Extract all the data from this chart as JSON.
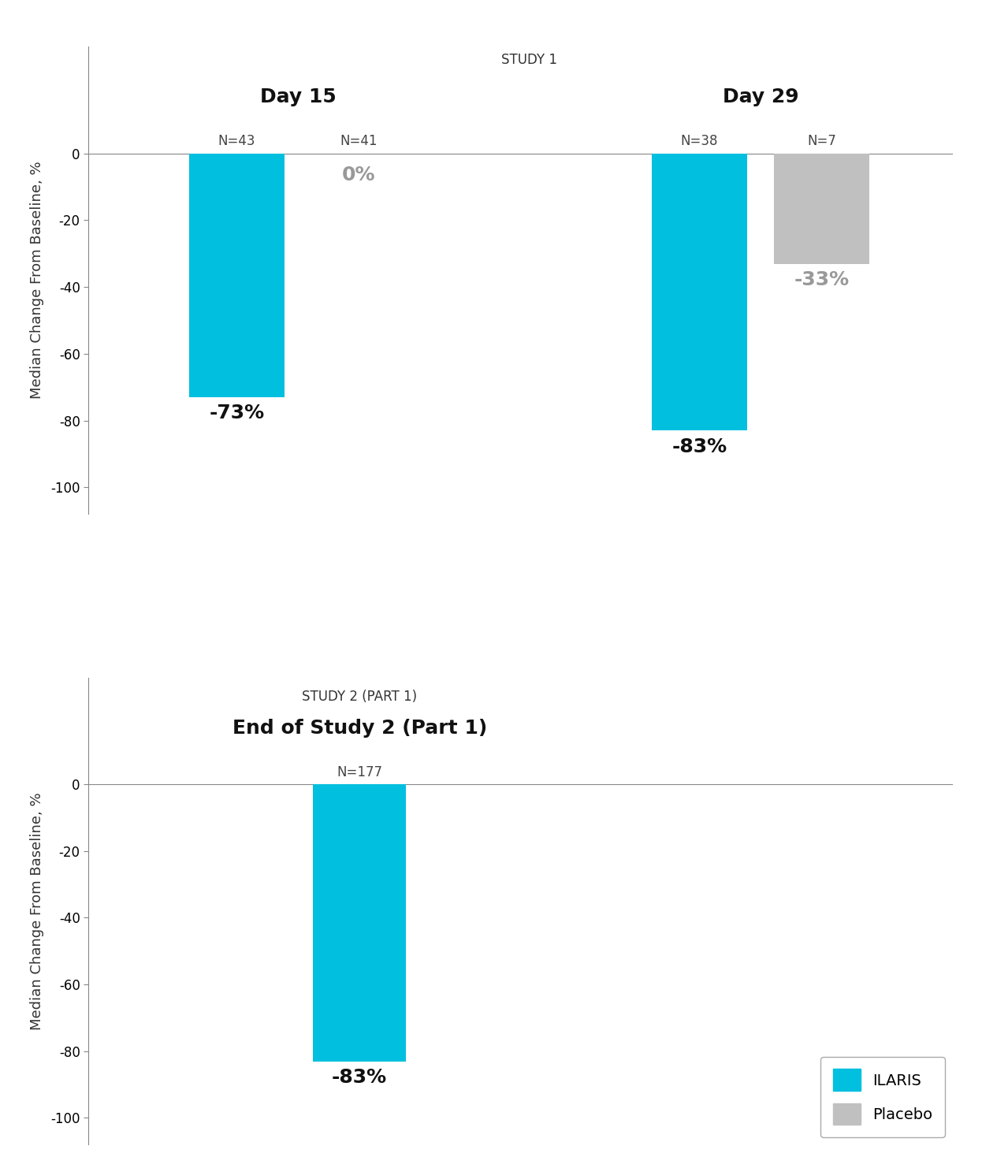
{
  "study1_title": "STUDY 1",
  "study2_title": "STUDY 2 (PART 1)",
  "day15_label": "Day 15",
  "day29_label": "Day 29",
  "study2_subtitle": "End of Study 2 (Part 1)",
  "ylabel": "Median Change From Baseline, %",
  "yticks": [
    0,
    -20,
    -40,
    -60,
    -80,
    -100
  ],
  "study1_bars": {
    "day15": {
      "ilaris": {
        "value": -73,
        "n": "N=43",
        "label": "-73%",
        "color": "#00BFDF"
      },
      "placebo": {
        "value": 0,
        "n": "N=41",
        "label": "0%",
        "color": "#C0C0C0"
      }
    },
    "day29": {
      "ilaris": {
        "value": -83,
        "n": "N=38",
        "label": "-83%",
        "color": "#00BFDF"
      },
      "placebo": {
        "value": -33,
        "n": "N=7",
        "label": "-33%",
        "color": "#C0C0C0"
      }
    }
  },
  "study2_bars": {
    "end": {
      "ilaris": {
        "value": -83,
        "n": "N=177",
        "label": "-83%",
        "color": "#00BFDF"
      }
    }
  },
  "ilaris_color": "#00BFDF",
  "placebo_color": "#C0C0C0",
  "ilaris_label": "ILARIS",
  "placebo_label": "Placebo",
  "label_color_ilaris": "#111111",
  "label_color_placebo": "#999999",
  "n_label_color": "#444444",
  "background_color": "#FFFFFF",
  "title_fontsize": 12,
  "subtitle_fontsize": 18,
  "tick_fontsize": 12,
  "ylabel_fontsize": 13,
  "bar_label_fontsize": 18,
  "n_label_fontsize": 12,
  "legend_fontsize": 14
}
